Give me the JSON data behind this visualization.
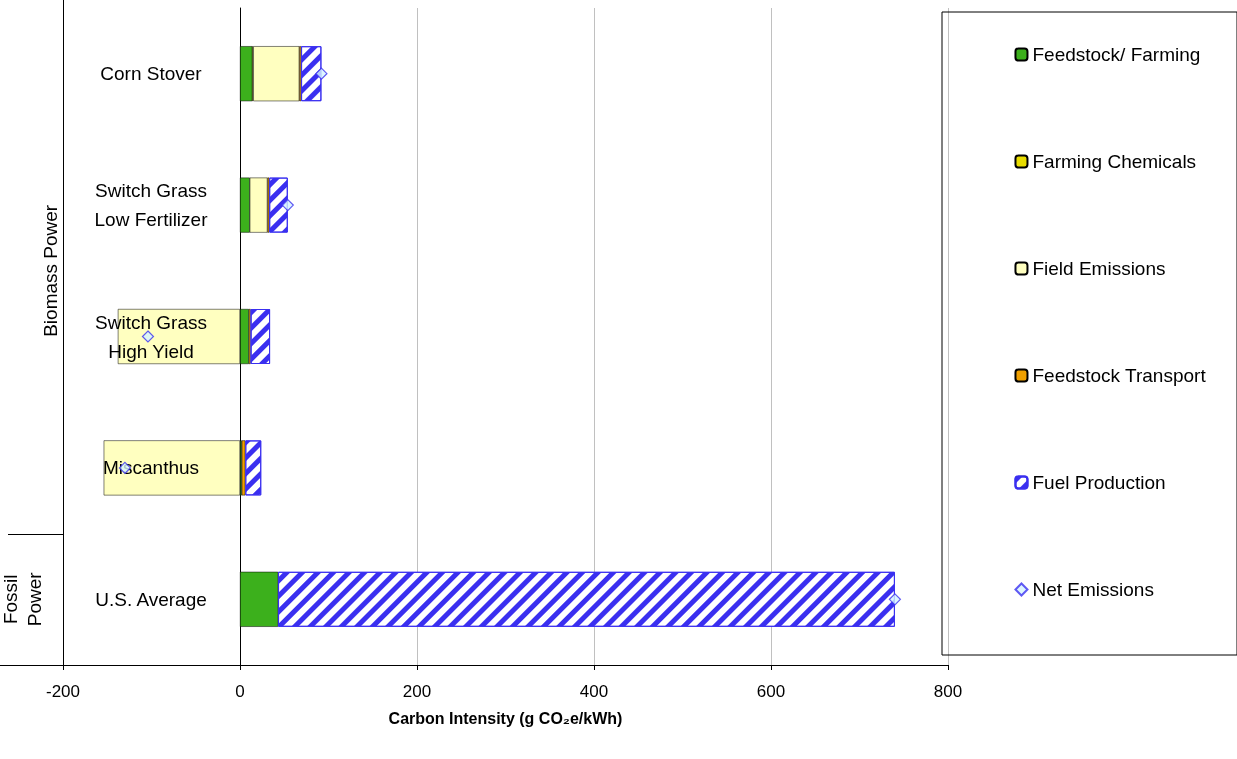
{
  "chart_data": {
    "type": "bar",
    "orientation": "horizontal",
    "stacked": true,
    "categories": [
      "Corn Stover",
      "Switch Grass\nLow Fertilizer",
      "Switch Grass\nHigh Yield",
      "Miscanthus",
      "U.S. Average"
    ],
    "series": [
      {
        "name": "Feedstock/ Farming",
        "color": "#3cb01c",
        "values": [
          14,
          11,
          10,
          2,
          43
        ]
      },
      {
        "name": "Farming Chemicals",
        "color": "#e8dc00",
        "values": [
          1,
          null,
          null,
          null,
          null
        ]
      },
      {
        "name": "Field Emissions",
        "color": "#ffffc0",
        "values": [
          52,
          20,
          -138,
          -154,
          null
        ]
      },
      {
        "name": "Feedstock Transport",
        "color": "#f0a000",
        "values": [
          2,
          2,
          2,
          4,
          null
        ]
      },
      {
        "name": "Fuel Production",
        "color": "#3a2ff0",
        "values": [
          23,
          21,
          22,
          18,
          697
        ]
      },
      {
        "name": "Net Emissions",
        "type": "scatter",
        "color": "#3a2ff0",
        "marker": "diamond",
        "values": [
          92,
          54,
          -104,
          -130,
          740
        ]
      }
    ],
    "xlim": [
      -200,
      800
    ],
    "xticks": [
      -200,
      0,
      200,
      400,
      600,
      800
    ],
    "xlabel": "Carbon Intensity (g CO₂e/kWh)",
    "annotations": [
      "Biomass Power",
      "Fossil\nPower"
    ],
    "grid": "x",
    "legend": "right"
  }
}
